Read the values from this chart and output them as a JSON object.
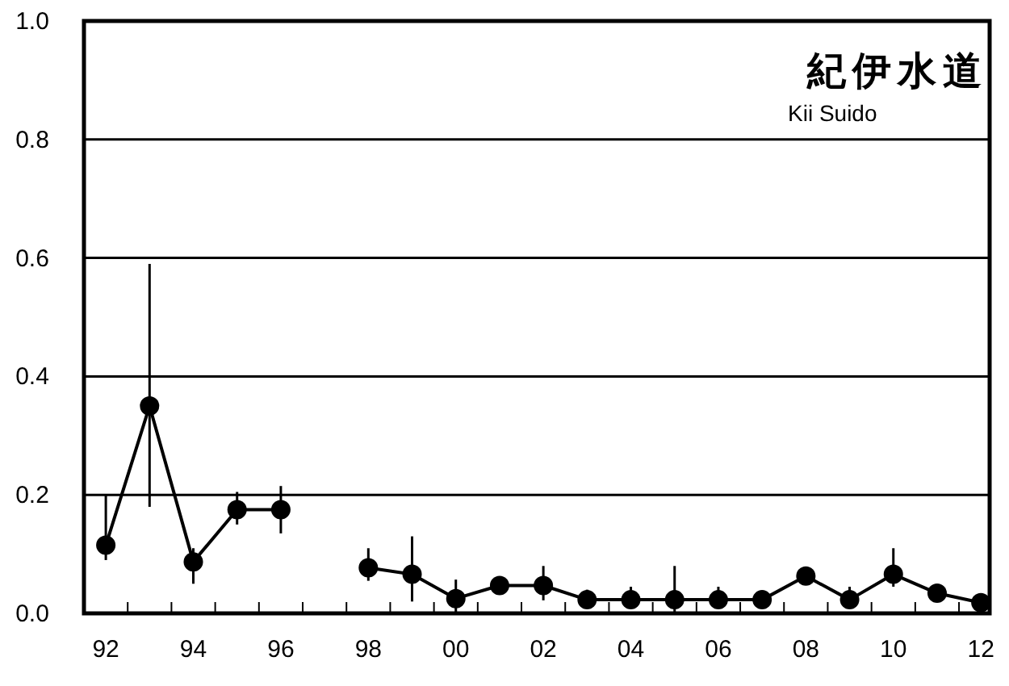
{
  "chart_data": {
    "type": "line",
    "title": "紀伊水道",
    "subtitle": "Kii Suido",
    "x": [
      1992,
      1993,
      1994,
      1995,
      1996,
      1997,
      1998,
      1999,
      2000,
      2001,
      2002,
      2003,
      2004,
      2005,
      2006,
      2007,
      2008,
      2009,
      2010,
      2011,
      2012
    ],
    "values": [
      0.115,
      0.35,
      0.087,
      0.175,
      0.175,
      null,
      0.077,
      0.066,
      0.025,
      0.047,
      0.047,
      0.023,
      0.023,
      0.023,
      0.023,
      0.023,
      0.063,
      0.023,
      0.066,
      0.034,
      0.018
    ],
    "errors": [
      [
        0.09,
        0.2
      ],
      [
        0.18,
        0.59
      ],
      [
        0.05,
        0.11
      ],
      [
        0.15,
        0.205
      ],
      [
        0.135,
        0.215
      ],
      null,
      [
        0.055,
        0.11
      ],
      [
        0.02,
        0.13
      ],
      [
        0,
        0.057
      ],
      null,
      [
        0.022,
        0.08
      ],
      [
        0.01,
        0.04
      ],
      [
        0.01,
        0.045
      ],
      [
        0,
        0.08
      ],
      [
        0.01,
        0.045
      ],
      null,
      [
        0.05,
        0.075
      ],
      [
        0.01,
        0.045
      ],
      [
        0.045,
        0.11
      ],
      null,
      null
    ],
    "color": "#000000",
    "marker": "circle",
    "line_style": "solid",
    "grid": "y",
    "xlim": [
      1991.5,
      2012.2
    ],
    "ylim": [
      0,
      1
    ],
    "xticks": [
      {
        "value": 1992,
        "label": "92"
      },
      {
        "value": 1994,
        "label": "94"
      },
      {
        "value": 1996,
        "label": "96"
      },
      {
        "value": 1998,
        "label": "98"
      },
      {
        "value": 2000,
        "label": "00"
      },
      {
        "value": 2002,
        "label": "02"
      },
      {
        "value": 2004,
        "label": "04"
      },
      {
        "value": 2006,
        "label": "06"
      },
      {
        "value": 2008,
        "label": "08"
      },
      {
        "value": 2010,
        "label": "10"
      },
      {
        "value": 2012,
        "label": "12"
      },
      {
        "value": 1992.5,
        "label": null
      },
      {
        "value": 1993.5,
        "label": null
      },
      {
        "value": 1994.5,
        "label": null
      },
      {
        "value": 1995.5,
        "label": null
      },
      {
        "value": 1996.5,
        "label": null
      },
      {
        "value": 1997.5,
        "label": null
      },
      {
        "value": 1998.5,
        "label": null
      },
      {
        "value": 1999.5,
        "label": null
      },
      {
        "value": 2000.5,
        "label": null
      },
      {
        "value": 2001.5,
        "label": null
      },
      {
        "value": 2002.5,
        "label": null
      },
      {
        "value": 2003.5,
        "label": null
      },
      {
        "value": 2004.5,
        "label": null
      },
      {
        "value": 2005.5,
        "label": null
      },
      {
        "value": 2006.5,
        "label": null
      },
      {
        "value": 2007.5,
        "label": null
      },
      {
        "value": 2008.5,
        "label": null
      },
      {
        "value": 2009.5,
        "label": null
      },
      {
        "value": 2010.5,
        "label": null
      },
      {
        "value": 2011.5,
        "label": null
      }
    ],
    "yticks": [
      {
        "value": 0,
        "label": "0.0"
      },
      {
        "value": 0.2,
        "label": "0.2"
      },
      {
        "value": 0.4,
        "label": "0.4"
      },
      {
        "value": 0.6,
        "label": "0.6"
      },
      {
        "value": 0.8,
        "label": "0.8"
      },
      {
        "value": 1,
        "label": "1.0"
      }
    ]
  }
}
